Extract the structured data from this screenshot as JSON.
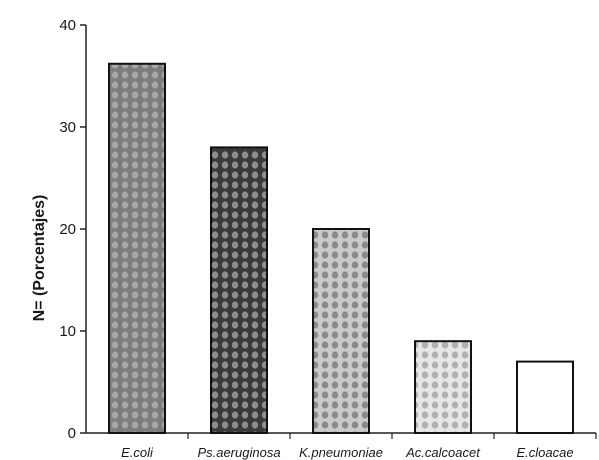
{
  "chart_data": {
    "type": "bar",
    "categories": [
      "E.coli",
      "Ps.aeruginosa",
      "K.pneumoniae",
      "Ac.calcoacet",
      "E.cloacae"
    ],
    "values": [
      36.2,
      28.0,
      20.0,
      9.0,
      7.0
    ],
    "title": "",
    "xlabel": "",
    "ylabel": "N= (Porcentajes)",
    "ylim": [
      0,
      40
    ],
    "yticks": [
      0,
      10,
      20,
      30,
      40
    ],
    "grid": false,
    "bar_fills": [
      "#7d7d7d",
      "#3a3a3a",
      "#c9c9c9",
      "#e6e6e6",
      "#ffffff"
    ],
    "bar_dots": [
      "#a8a8a8",
      "#8e8e8e",
      "#8a8a8a",
      "#b0b0b0",
      "none"
    ]
  }
}
